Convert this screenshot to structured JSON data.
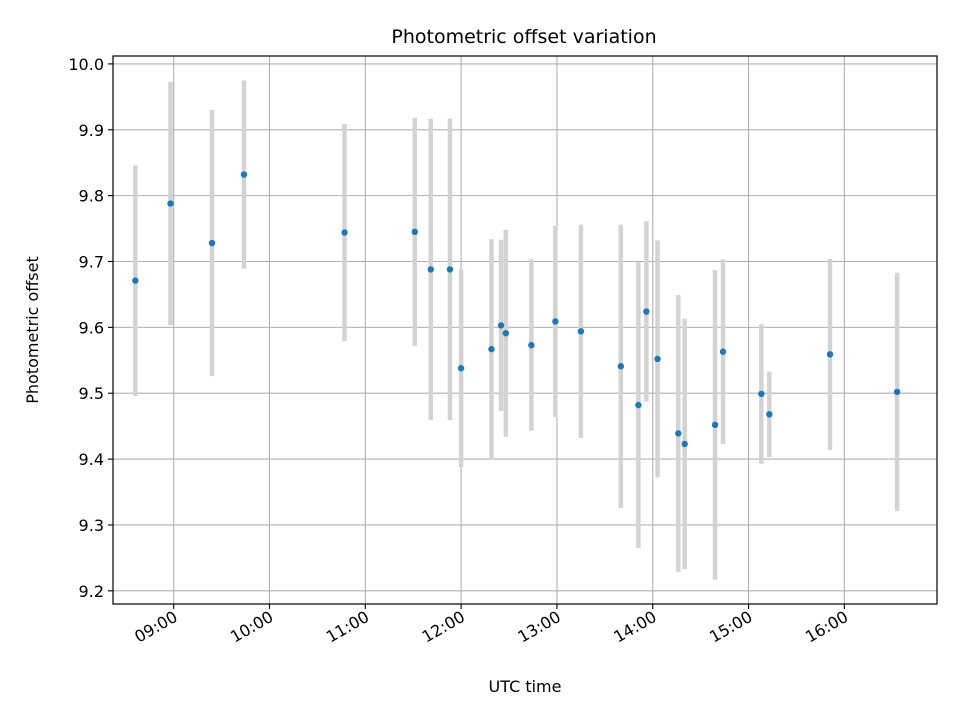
{
  "chart_data": {
    "type": "scatter",
    "title": "Photometric offset variation",
    "xlabel": "UTC time",
    "ylabel": "Photometric offset",
    "x_axis": "time",
    "x_ticks": [
      "09:00",
      "10:00",
      "11:00",
      "12:00",
      "13:00",
      "14:00",
      "15:00",
      "16:00"
    ],
    "y_ticks": [
      "9.2",
      "9.3",
      "9.4",
      "9.5",
      "9.6",
      "9.7",
      "9.8",
      "9.9",
      "10.0"
    ],
    "xlim": [
      "08:22",
      "16:58"
    ],
    "ylim": [
      9.18,
      10.012
    ],
    "grid": true,
    "colors": {
      "points": "#1f77b4",
      "errorbars": "#d3d3d3",
      "grid": "#b0b0b0",
      "frame": "#000000"
    },
    "series": [
      {
        "points": [
          {
            "x": "08:36",
            "y": 9.671,
            "yerr": 0.175
          },
          {
            "x": "08:58",
            "y": 9.788,
            "yerr": 0.185
          },
          {
            "x": "09:24",
            "y": 9.728,
            "yerr": 0.202
          },
          {
            "x": "09:44",
            "y": 9.832,
            "yerr": 0.143
          },
          {
            "x": "10:47",
            "y": 9.744,
            "yerr": 0.165
          },
          {
            "x": "11:31",
            "y": 9.745,
            "yerr": 0.173
          },
          {
            "x": "11:41",
            "y": 9.688,
            "yerr": 0.229
          },
          {
            "x": "11:53",
            "y": 9.688,
            "yerr": 0.229
          },
          {
            "x": "12:00",
            "y": 9.538,
            "yerr": 0.15
          },
          {
            "x": "12:19",
            "y": 9.567,
            "yerr": 0.167
          },
          {
            "x": "12:25",
            "y": 9.603,
            "yerr": 0.13
          },
          {
            "x": "12:28",
            "y": 9.591,
            "yerr": 0.157
          },
          {
            "x": "12:44",
            "y": 9.573,
            "yerr": 0.13
          },
          {
            "x": "12:59",
            "y": 9.609,
            "yerr": 0.145
          },
          {
            "x": "13:15",
            "y": 9.594,
            "yerr": 0.162
          },
          {
            "x": "13:40",
            "y": 9.541,
            "yerr": 0.215
          },
          {
            "x": "13:51",
            "y": 9.482,
            "yerr": 0.217
          },
          {
            "x": "13:56",
            "y": 9.624,
            "yerr": 0.137
          },
          {
            "x": "14:03",
            "y": 9.552,
            "yerr": 0.18
          },
          {
            "x": "14:16",
            "y": 9.439,
            "yerr": 0.21
          },
          {
            "x": "14:20",
            "y": 9.423,
            "yerr": 0.19
          },
          {
            "x": "14:39",
            "y": 9.452,
            "yerr": 0.235
          },
          {
            "x": "14:44",
            "y": 9.563,
            "yerr": 0.14
          },
          {
            "x": "15:08",
            "y": 9.499,
            "yerr": 0.106
          },
          {
            "x": "15:13",
            "y": 9.468,
            "yerr": 0.065
          },
          {
            "x": "15:51",
            "y": 9.559,
            "yerr": 0.145
          },
          {
            "x": "16:33",
            "y": 9.502,
            "yerr": 0.181
          }
        ]
      }
    ]
  }
}
